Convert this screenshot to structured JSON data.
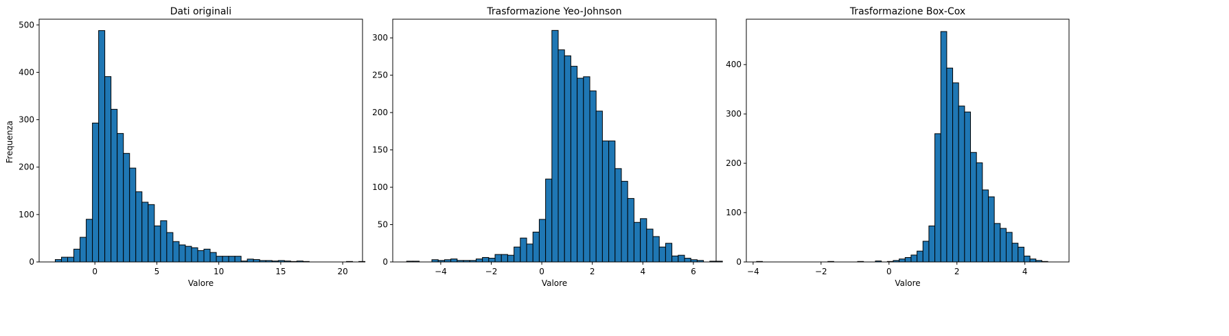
{
  "chart_data": [
    {
      "type": "bar",
      "title": "Dati originali",
      "xlabel": "Valore",
      "ylabel": "Frequenza",
      "xlim": [
        -4.5,
        21.6
      ],
      "ylim": [
        0,
        512
      ],
      "xticks": [
        0,
        5,
        10,
        15,
        20
      ],
      "yticks": [
        0,
        100,
        200,
        300,
        400,
        500
      ],
      "bin_start": -3.2,
      "bin_width": 0.5,
      "values": [
        5,
        10,
        10,
        27,
        52,
        90,
        293,
        488,
        391,
        322,
        271,
        229,
        198,
        148,
        126,
        121,
        76,
        87,
        62,
        43,
        36,
        33,
        30,
        24,
        27,
        20,
        12,
        12,
        12,
        12,
        2,
        6,
        5,
        3,
        3,
        2,
        3,
        2,
        1,
        2,
        1,
        0,
        0,
        0,
        0,
        0,
        0,
        1,
        0,
        1
      ]
    },
    {
      "type": "bar",
      "title": "Trasformazione Yeo-Johnson",
      "xlabel": "Valore",
      "ylabel": "",
      "xlim": [
        -5.9,
        6.9
      ],
      "ylim": [
        0,
        325
      ],
      "xticks": [
        -4,
        -2,
        0,
        2,
        4,
        6
      ],
      "yticks": [
        0,
        50,
        100,
        150,
        200,
        250,
        300
      ],
      "bin_start": -5.35,
      "bin_width": 0.25,
      "values": [
        1,
        1,
        0,
        0,
        3,
        2,
        3,
        4,
        2,
        2,
        2,
        4,
        6,
        5,
        10,
        10,
        9,
        20,
        32,
        24,
        40,
        57,
        111,
        310,
        284,
        276,
        262,
        246,
        248,
        229,
        202,
        162,
        162,
        125,
        108,
        85,
        53,
        58,
        44,
        34,
        20,
        25,
        8,
        9,
        5,
        3,
        2,
        0,
        1,
        1
      ]
    },
    {
      "type": "bar",
      "title": "Trasformazione Box-Cox",
      "xlabel": "Valore",
      "ylabel": "",
      "xlim": [
        -4.2,
        5.3
      ],
      "ylim": [
        0,
        492
      ],
      "xticks": [
        -4,
        -2,
        0,
        2,
        4
      ],
      "yticks": [
        0,
        100,
        200,
        300,
        400
      ],
      "bin_start": -3.9,
      "bin_width": 0.175,
      "values": [
        1,
        0,
        0,
        0,
        0,
        0,
        0,
        0,
        0,
        0,
        0,
        0,
        1,
        0,
        0,
        0,
        0,
        1,
        0,
        0,
        2,
        0,
        1,
        3,
        6,
        9,
        14,
        22,
        42,
        73,
        260,
        467,
        393,
        363,
        316,
        304,
        222,
        201,
        146,
        132,
        78,
        68,
        60,
        38,
        30,
        12,
        6,
        3,
        1,
        0
      ]
    }
  ]
}
